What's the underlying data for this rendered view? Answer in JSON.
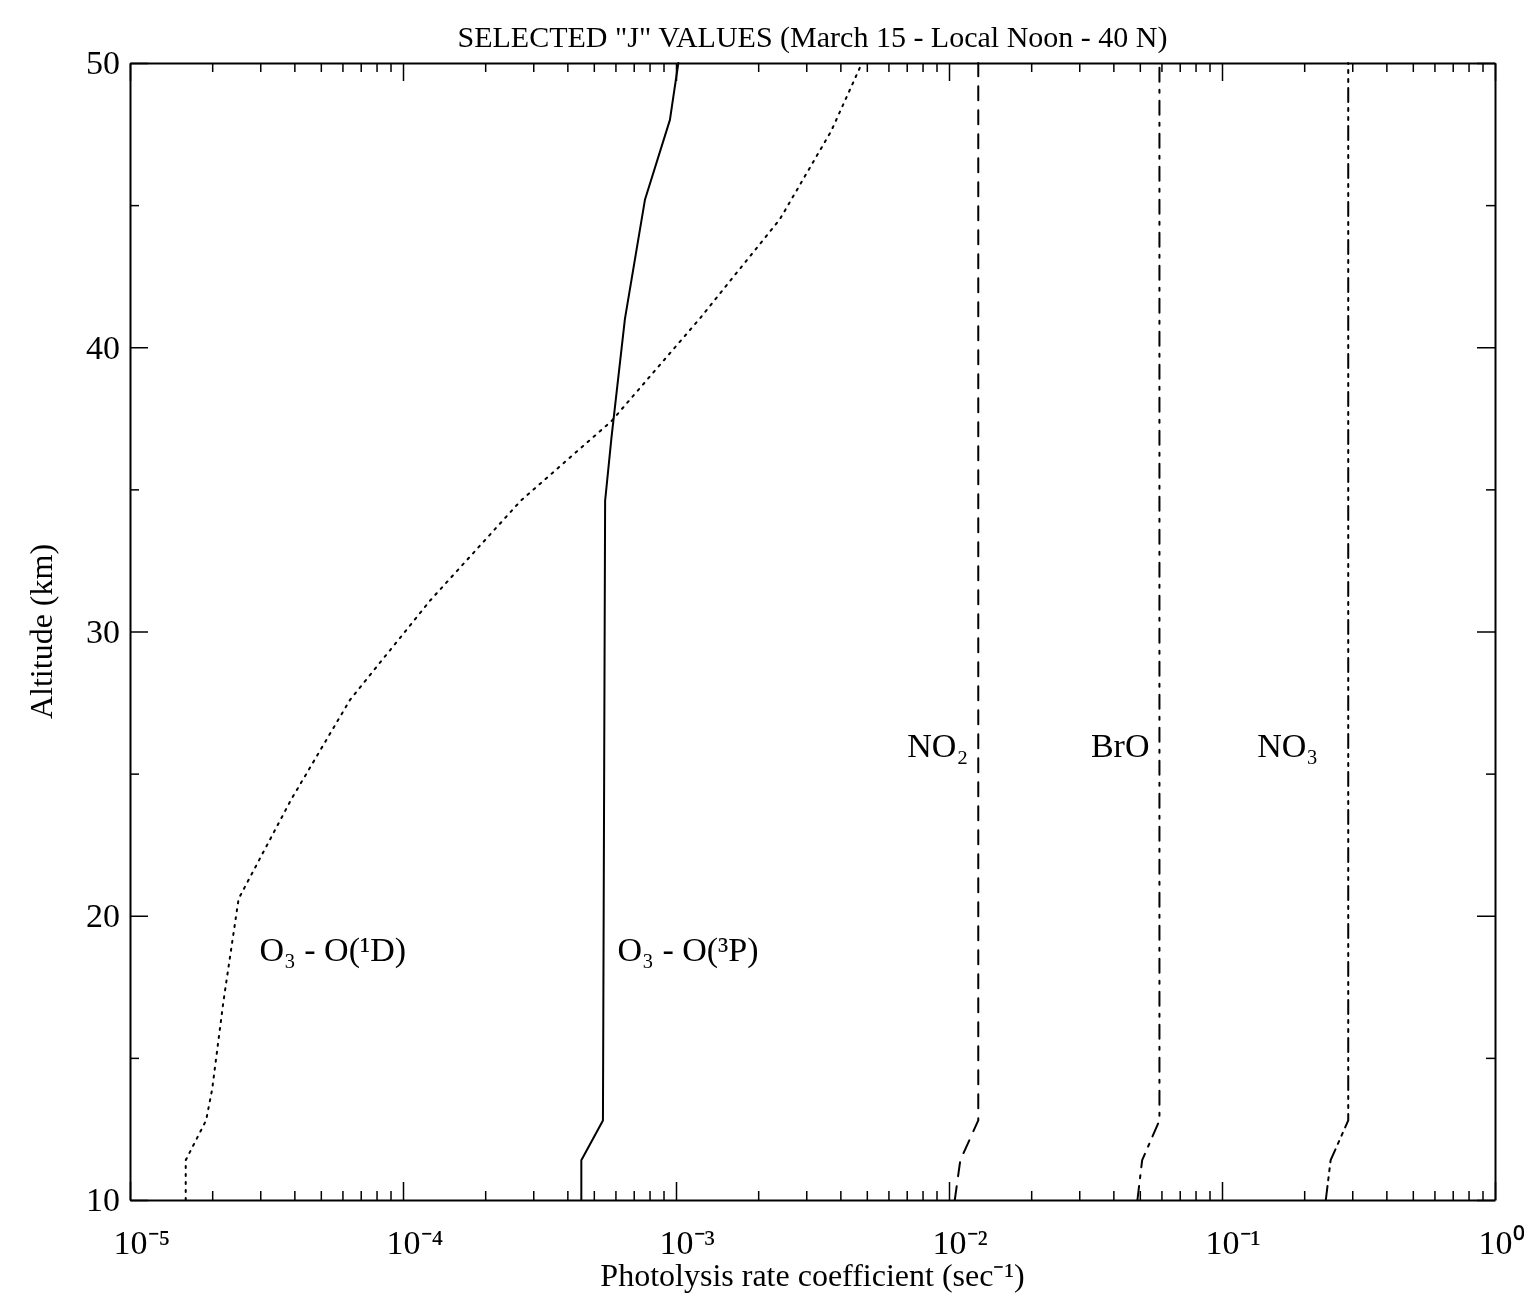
{
  "chart_data": {
    "type": "line",
    "title": "SELECTED \"J\" VALUES (March 15 - Local Noon - 40 N)",
    "xlabel": "Photolysis rate coefficient (sec⁻¹)",
    "ylabel": "Altitude (km)",
    "log": "x",
    "grid": false,
    "legend": false,
    "marker": "none",
    "xlim": [
      1e-05,
      1
    ],
    "ylim": [
      10,
      50
    ],
    "xticks": [
      {
        "value": 1e-05,
        "label": "10⁻⁵"
      },
      {
        "value": 2e-05,
        "label": null
      },
      {
        "value": 3e-05,
        "label": null
      },
      {
        "value": 4e-05,
        "label": null
      },
      {
        "value": 5e-05,
        "label": null
      },
      {
        "value": 6e-05,
        "label": null
      },
      {
        "value": 7e-05,
        "label": null
      },
      {
        "value": 8e-05,
        "label": null
      },
      {
        "value": 9e-05,
        "label": null
      },
      {
        "value": 0.0001,
        "label": "10⁻⁴"
      },
      {
        "value": 0.0002,
        "label": null
      },
      {
        "value": 0.0003,
        "label": null
      },
      {
        "value": 0.0004,
        "label": null
      },
      {
        "value": 0.0005,
        "label": null
      },
      {
        "value": 0.0006,
        "label": null
      },
      {
        "value": 0.0007,
        "label": null
      },
      {
        "value": 0.0008,
        "label": null
      },
      {
        "value": 0.0009,
        "label": null
      },
      {
        "value": 0.001,
        "label": "10⁻³"
      },
      {
        "value": 0.002,
        "label": null
      },
      {
        "value": 0.003,
        "label": null
      },
      {
        "value": 0.004,
        "label": null
      },
      {
        "value": 0.005,
        "label": null
      },
      {
        "value": 0.006,
        "label": null
      },
      {
        "value": 0.007,
        "label": null
      },
      {
        "value": 0.008,
        "label": null
      },
      {
        "value": 0.009,
        "label": null
      },
      {
        "value": 0.01,
        "label": "10⁻²"
      },
      {
        "value": 0.02,
        "label": null
      },
      {
        "value": 0.03,
        "label": null
      },
      {
        "value": 0.04,
        "label": null
      },
      {
        "value": 0.05,
        "label": null
      },
      {
        "value": 0.06,
        "label": null
      },
      {
        "value": 0.07,
        "label": null
      },
      {
        "value": 0.08,
        "label": null
      },
      {
        "value": 0.09,
        "label": null
      },
      {
        "value": 0.1,
        "label": "10⁻¹"
      },
      {
        "value": 0.2,
        "label": null
      },
      {
        "value": 0.3,
        "label": null
      },
      {
        "value": 0.4,
        "label": null
      },
      {
        "value": 0.5,
        "label": null
      },
      {
        "value": 0.6,
        "label": null
      },
      {
        "value": 0.7,
        "label": null
      },
      {
        "value": 0.8,
        "label": null
      },
      {
        "value": 0.9,
        "label": null
      },
      {
        "value": 1,
        "label": "10⁰"
      }
    ],
    "yticks": [
      10,
      {
        "value": 15,
        "label": null
      },
      20,
      {
        "value": 25,
        "label": null
      },
      30,
      {
        "value": 35,
        "label": null
      },
      40,
      {
        "value": 45,
        "label": null
      },
      50
    ],
    "series": [
      {
        "name": "O₃ - O(¹D)",
        "color": "#000000",
        "line_style": "dotted",
        "x": [
          1.6e-05,
          1.6e-05,
          1.9e-05,
          2e-05,
          2.2e-05,
          2.5e-05,
          3.9e-05,
          6.4e-05,
          0.000126,
          0.00027,
          0.00058,
          0.00122,
          0.0024,
          0.0037,
          0.0048
        ],
        "values": [
          10,
          11.4,
          12.8,
          13.9,
          17,
          20.6,
          24.1,
          27.6,
          31.1,
          34.6,
          37.4,
          41,
          44.5,
          47.6,
          50
        ]
      },
      {
        "name": "O₃ - O(³P)",
        "color": "#000000",
        "line_style": "solid",
        "x": [
          0.00045,
          0.00045,
          0.00054,
          0.00055,
          0.00058,
          0.00065,
          0.00077,
          0.00095,
          0.00102
        ],
        "values": [
          10,
          11.4,
          12.8,
          34.6,
          36.8,
          41,
          45.2,
          48,
          50
        ]
      },
      {
        "name": "NO₂",
        "color": "#000000",
        "line_style": "dashed",
        "x": [
          0.0105,
          0.011,
          0.0128,
          0.0128
        ],
        "values": [
          10,
          11.4,
          12.8,
          50
        ]
      },
      {
        "name": "BrO",
        "color": "#000000",
        "line_style": "dashdot",
        "x": [
          0.049,
          0.051,
          0.059,
          0.059
        ],
        "values": [
          10,
          11.4,
          12.8,
          50
        ]
      },
      {
        "name": "NO₃",
        "color": "#000000",
        "line_style": "dashdotdot",
        "x": [
          0.24,
          0.25,
          0.29,
          0.29
        ],
        "values": [
          10,
          11.4,
          12.8,
          50
        ]
      }
    ]
  }
}
